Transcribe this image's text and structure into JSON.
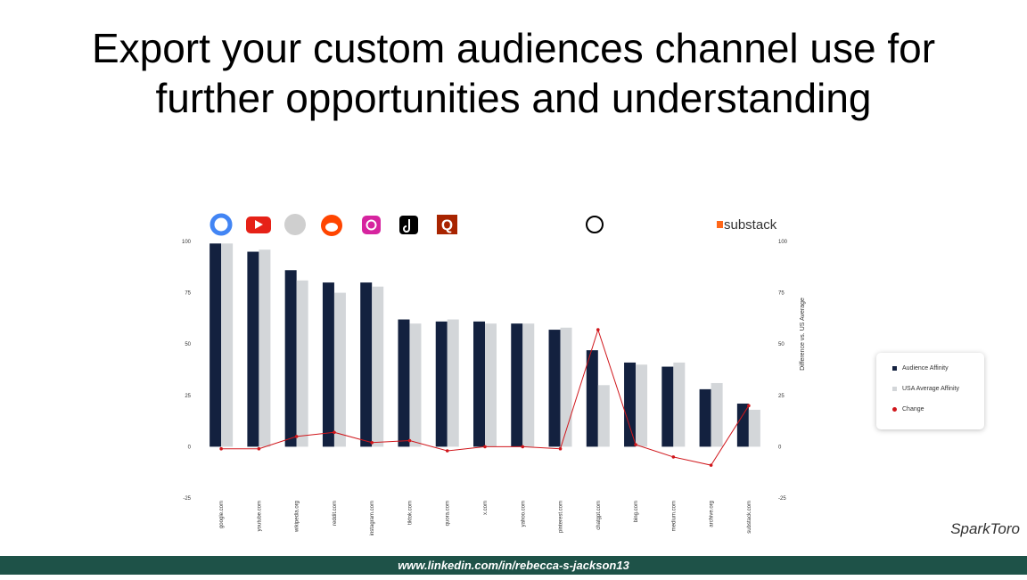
{
  "title": "Export your custom audiences channel use for further opportunities and understanding",
  "brand": "SparkToro",
  "footer": "www.linkedin.com/in/rebecca-s-jackson13",
  "logos": {
    "quora": "Q",
    "substack": "substack"
  },
  "chart_data": {
    "type": "bar",
    "categories": [
      "google.com",
      "youtube.com",
      "wikipedia.org",
      "reddit.com",
      "instagram.com",
      "tiktok.com",
      "quora.com",
      "x.com",
      "yahoo.com",
      "pinterest.com",
      "chatgpt.com",
      "bing.com",
      "medium.com",
      "archive.org",
      "substack.com"
    ],
    "series": [
      {
        "name": "Audience Affinity",
        "type": "bar",
        "color": "#13213f",
        "values": [
          99,
          95,
          86,
          80,
          80,
          62,
          61,
          61,
          60,
          57,
          47,
          41,
          39,
          28,
          21
        ]
      },
      {
        "name": "USA Average Affinity",
        "type": "bar",
        "color": "#d3d6d9",
        "values": [
          99,
          96,
          81,
          75,
          78,
          60,
          62,
          60,
          60,
          58,
          30,
          40,
          41,
          31,
          18
        ]
      },
      {
        "name": "Change",
        "type": "line",
        "axis": "y2",
        "color": "#d0161b",
        "values": [
          -1,
          -1,
          5,
          7,
          2,
          3,
          -2,
          0,
          0,
          -1,
          57,
          1,
          -5,
          -9,
          20
        ]
      }
    ],
    "ylim": [
      -25,
      100
    ],
    "yticks": [
      -25,
      0,
      25,
      50,
      75,
      100
    ],
    "y2lim": [
      -25,
      100
    ],
    "y2ticks": [
      -25,
      0,
      25,
      50,
      75,
      100
    ],
    "y2label": "Difference vs. US Average",
    "grid": false,
    "legend": "right"
  }
}
